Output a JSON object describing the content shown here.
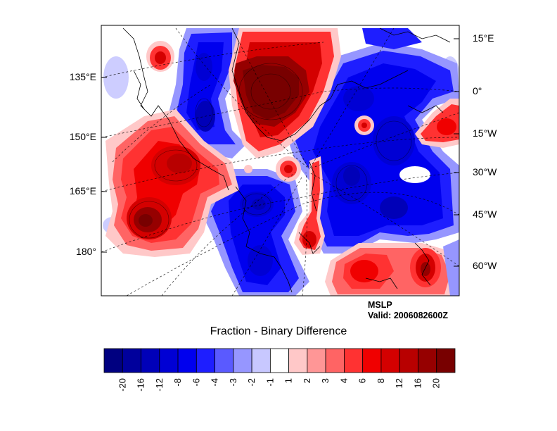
{
  "chart_data": {
    "type": "heatmap",
    "title": "Fraction - Binary Difference",
    "variable": "MSLP",
    "valid": "Valid: 2006082600Z",
    "left_lon_labels": [
      "135°E",
      "150°E",
      "165°E",
      "180°"
    ],
    "right_lon_labels": [
      "15°E",
      "0°",
      "15°W",
      "30°W",
      "45°W",
      "60°W"
    ],
    "colorbar": {
      "labels": [
        "-20",
        "-16",
        "-12",
        "-8",
        "-6",
        "-4",
        "-3",
        "-2",
        "-1",
        "1",
        "2",
        "3",
        "4",
        "6",
        "8",
        "12",
        "16",
        "20"
      ],
      "colors": [
        "#000080",
        "#00009c",
        "#0000b8",
        "#0000d4",
        "#0000ee",
        "#1e1eff",
        "#5a5aff",
        "#9696ff",
        "#c8c8ff",
        "#ffffff",
        "#ffc8c8",
        "#ff9696",
        "#ff6464",
        "#ff3232",
        "#f00000",
        "#d40000",
        "#b80000",
        "#960000",
        "#780000"
      ]
    },
    "colors": {
      "positive": "#ff0000",
      "negative": "#0000ff",
      "neutral": "#ffffff"
    }
  }
}
